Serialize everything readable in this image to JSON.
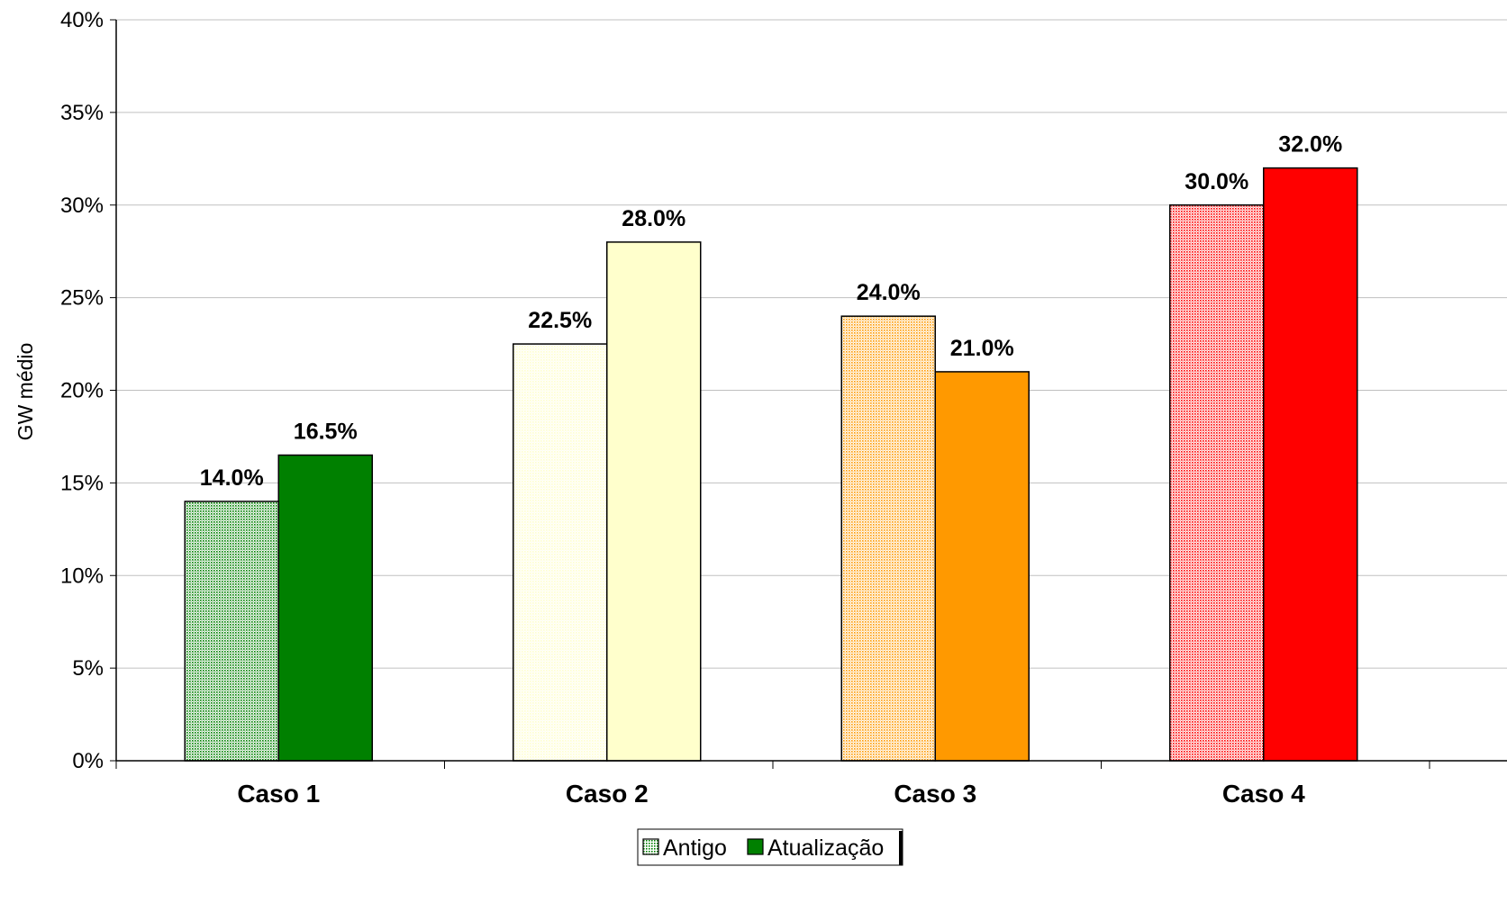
{
  "chart_data": {
    "type": "bar",
    "title": "",
    "xlabel": "",
    "ylabel": "GW médio",
    "ylim": [
      0,
      40
    ],
    "yticks": [
      "0%",
      "5%",
      "10%",
      "15%",
      "20%",
      "25%",
      "30%",
      "35%",
      "40%"
    ],
    "categories": [
      "Caso 1",
      "Caso 2",
      "Caso 3",
      "Caso 4"
    ],
    "series": [
      {
        "name": "Antigo",
        "values": [
          14.0,
          22.5,
          24.0,
          30.0
        ],
        "labels": [
          "14.0%",
          "22.5%",
          "24.0%",
          "30.0%"
        ],
        "pattern": "dotted"
      },
      {
        "name": "Atualização",
        "values": [
          16.5,
          28.0,
          21.0,
          32.0
        ],
        "labels": [
          "16.5%",
          "28.0%",
          "21.0%",
          "32.0%"
        ],
        "pattern": "solid"
      }
    ],
    "category_colors": [
      "#008000",
      "#FFFFCC",
      "#FF9900",
      "#FF0000"
    ],
    "grid": true,
    "legend_position": "bottom-center"
  }
}
